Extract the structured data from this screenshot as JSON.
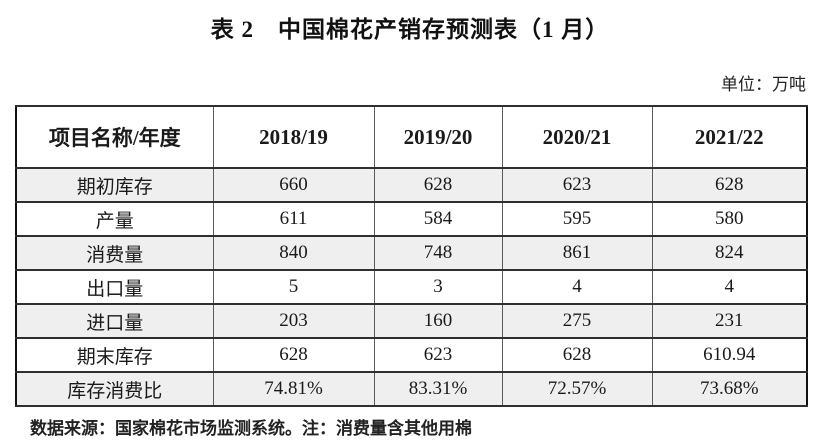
{
  "page": {
    "title": "表 2　中国棉花产销存预测表（1 月）",
    "unit_label": "单位：万吨",
    "footnote": "数据来源：国家棉花市场监测系统。注：消费量含其他用棉"
  },
  "table": {
    "header": [
      "项目名称/年度",
      "2018/19",
      "2019/20",
      "2020/21",
      "2021/22"
    ],
    "rows": [
      {
        "label": "期初库存",
        "values": [
          "660",
          "628",
          "623",
          "628"
        ]
      },
      {
        "label": "产量",
        "values": [
          "611",
          "584",
          "595",
          "580"
        ]
      },
      {
        "label": "消费量",
        "values": [
          "840",
          "748",
          "861",
          "824"
        ]
      },
      {
        "label": "出口量",
        "values": [
          "5",
          "3",
          "4",
          "4"
        ]
      },
      {
        "label": "进口量",
        "values": [
          "203",
          "160",
          "275",
          "231"
        ]
      },
      {
        "label": "期末库存",
        "values": [
          "628",
          "623",
          "628",
          "610.94"
        ]
      },
      {
        "label": "库存消费比",
        "values": [
          "74.81%",
          "83.31%",
          "72.57%",
          "73.68%"
        ]
      }
    ]
  },
  "colors": {
    "row_shade": "#efefef",
    "outer_border": "#111111",
    "row_border": "#2f2f2f",
    "column_border": "#5a5a5a",
    "text": "#1a1a1a"
  }
}
